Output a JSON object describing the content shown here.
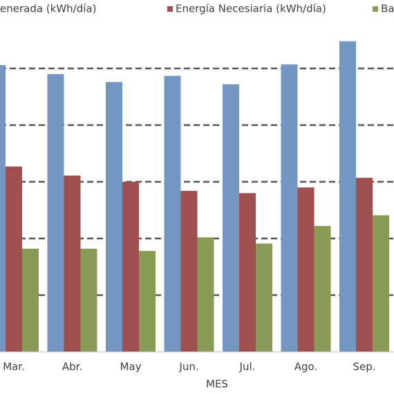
{
  "chart_data": {
    "type": "bar",
    "x_label": "MES",
    "categories": [
      "Mar.",
      "Abr.",
      "May",
      "Jun.",
      "Jul.",
      "Ago.",
      "Sep."
    ],
    "series": [
      {
        "name": "enerada (kWh/día)",
        "color": "#7397c0",
        "values": [
          5.06,
          4.9,
          4.76,
          4.87,
          4.72,
          5.07,
          5.48
        ]
      },
      {
        "name": "Energía Necesiaria (kWh/día)",
        "color": "#a04f50",
        "values": [
          3.27,
          3.11,
          3.0,
          2.84,
          2.8,
          2.9,
          3.07
        ]
      },
      {
        "name": "Ba",
        "color": "#8a9b58",
        "values": [
          1.82,
          1.82,
          1.78,
          2.02,
          1.91,
          2.22,
          2.41
        ]
      }
    ],
    "ylim": [
      0,
      6
    ],
    "yticks": [
      1,
      2,
      3,
      4,
      5
    ],
    "grid": true
  }
}
